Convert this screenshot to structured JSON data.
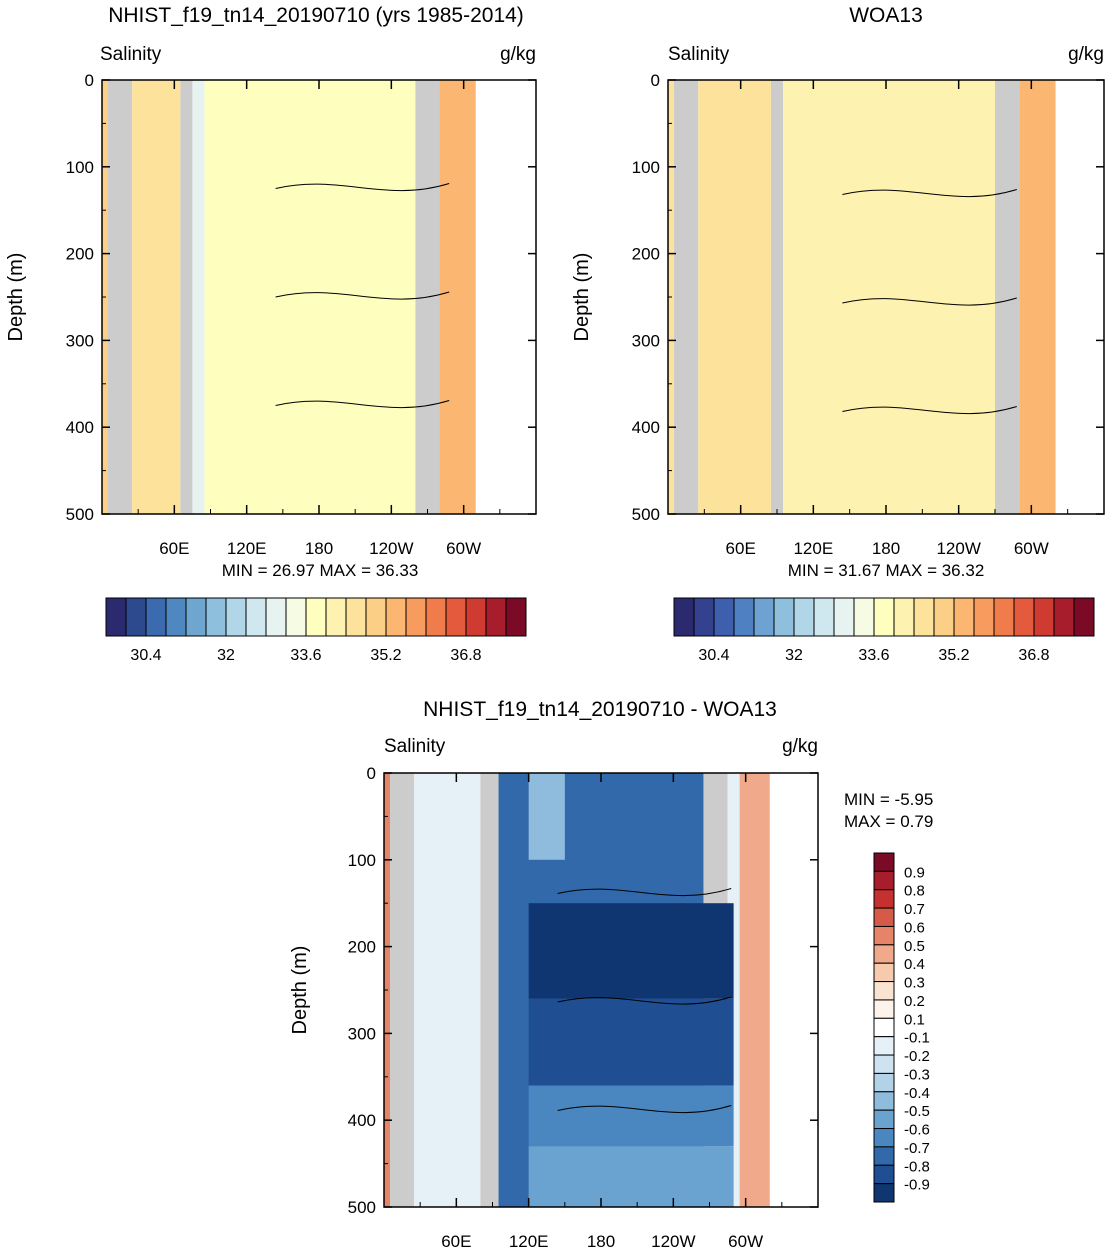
{
  "chart_data": [
    {
      "type": "heatmap",
      "title": "NHIST_f19_tn14_20190710 (yrs 1985-2014)",
      "left_label": "Salinity",
      "right_label": "g/kg",
      "ylabel": "Depth (m)",
      "ylim": [
        500,
        0
      ],
      "yticks": [
        "0",
        "100",
        "200",
        "300",
        "400",
        "500"
      ],
      "xticks": [
        "60E",
        "120E",
        "180",
        "120W",
        "60W"
      ],
      "stats": "MIN =  26.97  MAX =  36.33",
      "colorbar_labels": [
        "30.4",
        "32",
        "33.6",
        "35.2",
        "36.8"
      ],
      "colorbar_colors": [
        "#2b2a6e",
        "#2e4a8f",
        "#3b6aae",
        "#4f88c0",
        "#6ea6d0",
        "#8ec0de",
        "#b0d6e8",
        "#cfe7ef",
        "#e6f3f1",
        "#f6fbe3",
        "#fefebf",
        "#fef2b0",
        "#fde29c",
        "#fccf86",
        "#fbb672",
        "#f79c5e",
        "#f07c4c",
        "#e45a3d",
        "#cf3a31",
        "#a81d2b",
        "#7a0a26"
      ],
      "columns": [
        {
          "lon_width": 5,
          "fill": "#fccf86"
        },
        {
          "lon_width": 20,
          "fill": "#cccccc"
        },
        {
          "lon_width": 40,
          "fill": "#fde29c"
        },
        {
          "lon_width": 10,
          "fill": "#cccccc"
        },
        {
          "lon_width": 10,
          "fill": "#e6f3f1"
        },
        {
          "lon_width": 175,
          "fill": "#fefebf"
        },
        {
          "lon_width": 20,
          "fill": "#cccccc"
        },
        {
          "lon_width": 30,
          "fill": "#fbb672"
        }
      ]
    },
    {
      "type": "heatmap",
      "title": "WOA13",
      "left_label": "Salinity",
      "right_label": "g/kg",
      "ylabel": "Depth (m)",
      "ylim": [
        500,
        0
      ],
      "yticks": [
        "0",
        "100",
        "200",
        "300",
        "400",
        "500"
      ],
      "xticks": [
        "60E",
        "120E",
        "180",
        "120W",
        "60W"
      ],
      "stats": "MIN =  31.67  MAX =  36.32",
      "colorbar_labels": [
        "30.4",
        "32",
        "33.6",
        "35.2",
        "36.8"
      ],
      "colorbar_colors": [
        "#2b2a6e",
        "#33418f",
        "#3d5fae",
        "#4f80c2",
        "#6ea2d2",
        "#8ec0de",
        "#b0d6e8",
        "#cfe7ef",
        "#e6f3f1",
        "#f6fbe3",
        "#fefebf",
        "#fef2b0",
        "#fde29c",
        "#fccf86",
        "#fbb672",
        "#f79c5e",
        "#f07c4c",
        "#e45a3d",
        "#cf3a31",
        "#a81d2b",
        "#7a0a26"
      ],
      "columns": [
        {
          "lon_width": 5,
          "fill": "#fde29c"
        },
        {
          "lon_width": 20,
          "fill": "#cccccc"
        },
        {
          "lon_width": 60,
          "fill": "#fde29c"
        },
        {
          "lon_width": 10,
          "fill": "#cccccc"
        },
        {
          "lon_width": 175,
          "fill": "#fef2b0"
        },
        {
          "lon_width": 20,
          "fill": "#cccccc"
        },
        {
          "lon_width": 30,
          "fill": "#fbb672"
        }
      ]
    },
    {
      "type": "heatmap",
      "title": "NHIST_f19_tn14_20190710 - WOA13",
      "left_label": "Salinity",
      "right_label": "g/kg",
      "ylabel": "Depth (m)",
      "ylim": [
        500,
        0
      ],
      "yticks": [
        "0",
        "100",
        "200",
        "300",
        "400",
        "500"
      ],
      "xticks": [
        "60E",
        "120E",
        "180",
        "120W",
        "60W"
      ],
      "stats_min": "MIN =  -5.95",
      "stats_max": "MAX =    0.79",
      "colorbar_labels": [
        "0.9",
        "0.8",
        "0.7",
        "0.6",
        "0.5",
        "0.4",
        "0.3",
        "0.2",
        "0.1",
        "-0.1",
        "-0.2",
        "-0.3",
        "-0.4",
        "-0.5",
        "-0.6",
        "-0.7",
        "-0.8",
        "-0.9"
      ],
      "colorbar_colors": [
        "#7a0a26",
        "#a81d2b",
        "#c5312f",
        "#d65a48",
        "#e58468",
        "#f0a98a",
        "#f7c9ad",
        "#fbe3d2",
        "#fdf3eb",
        "#ffffff",
        "#e6f0f7",
        "#cfe2f0",
        "#b2d2e8",
        "#8fbcdc",
        "#6aa3cf",
        "#4a86bf",
        "#3169ab",
        "#1f4f92",
        "#0f3670"
      ],
      "columns": [
        {
          "lon_width": 5,
          "fill": "#e58468"
        },
        {
          "lon_width": 20,
          "fill": "#cccccc"
        },
        {
          "lon_width": 55,
          "fill": "#e6f0f7"
        },
        {
          "lon_width": 15,
          "fill": "#cccccc"
        },
        {
          "lon_width": 170,
          "fill": "#3169ab"
        },
        {
          "lon_width": 20,
          "fill": "#cccccc"
        },
        {
          "lon_width": 10,
          "fill": "#e6f0f7"
        },
        {
          "lon_width": 25,
          "fill": "#f0a98a"
        }
      ],
      "bands": [
        {
          "lon_start": 120,
          "lon_end": 290,
          "depth_start": 150,
          "depth_end": 260,
          "fill": "#0f3670"
        },
        {
          "lon_start": 120,
          "lon_end": 290,
          "depth_start": 260,
          "depth_end": 360,
          "fill": "#1f4f92"
        },
        {
          "lon_start": 120,
          "lon_end": 290,
          "depth_start": 360,
          "depth_end": 430,
          "fill": "#4a86bf"
        },
        {
          "lon_start": 120,
          "lon_end": 290,
          "depth_start": 430,
          "depth_end": 500,
          "fill": "#6aa3cf"
        },
        {
          "lon_start": 120,
          "lon_end": 150,
          "depth_start": 0,
          "depth_end": 100,
          "fill": "#8fbcdc"
        }
      ]
    }
  ]
}
